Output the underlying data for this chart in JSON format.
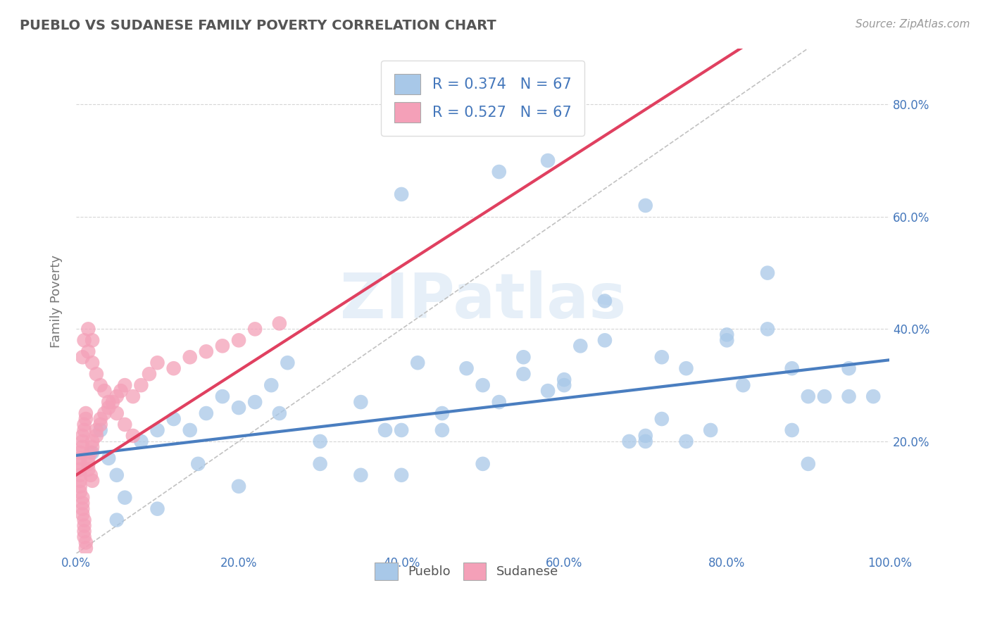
{
  "title": "PUEBLO VS SUDANESE FAMILY POVERTY CORRELATION CHART",
  "source": "Source: ZipAtlas.com",
  "xlabel": "",
  "ylabel": "Family Poverty",
  "xlim": [
    0,
    1.0
  ],
  "ylim": [
    0,
    0.9
  ],
  "xticks": [
    0.0,
    0.2,
    0.4,
    0.6,
    0.8,
    1.0
  ],
  "yticks": [
    0.2,
    0.4,
    0.6,
    0.8
  ],
  "xticklabels": [
    "0.0%",
    "20.0%",
    "40.0%",
    "60.0%",
    "80.0%",
    "100.0%"
  ],
  "yticklabels_right": [
    "20.0%",
    "40.0%",
    "60.0%",
    "80.0%"
  ],
  "pueblo_color": "#A8C8E8",
  "sudanese_color": "#F4A0B8",
  "pueblo_line_color": "#4A7EC0",
  "sudanese_line_color": "#E04060",
  "diag_line_color": "#BBBBBB",
  "watermark_text": "ZIPatlas",
  "R_pueblo": 0.374,
  "N_pueblo": 67,
  "R_sudanese": 0.527,
  "N_sudanese": 67,
  "pueblo_x": [
    0.02,
    0.03,
    0.04,
    0.05,
    0.06,
    0.08,
    0.1,
    0.12,
    0.14,
    0.16,
    0.18,
    0.2,
    0.22,
    0.24,
    0.26,
    0.3,
    0.35,
    0.38,
    0.4,
    0.42,
    0.45,
    0.48,
    0.5,
    0.52,
    0.55,
    0.58,
    0.6,
    0.62,
    0.65,
    0.68,
    0.7,
    0.72,
    0.75,
    0.78,
    0.8,
    0.82,
    0.85,
    0.88,
    0.9,
    0.92,
    0.95,
    0.98,
    0.52,
    0.58,
    0.65,
    0.72,
    0.8,
    0.88,
    0.3,
    0.4,
    0.5,
    0.6,
    0.7,
    0.9,
    0.1,
    0.2,
    0.35,
    0.45,
    0.55,
    0.75,
    0.85,
    0.95,
    0.25,
    0.15,
    0.05,
    0.7,
    0.4
  ],
  "pueblo_y": [
    0.18,
    0.22,
    0.17,
    0.14,
    0.1,
    0.2,
    0.22,
    0.24,
    0.22,
    0.25,
    0.28,
    0.26,
    0.27,
    0.3,
    0.34,
    0.2,
    0.27,
    0.22,
    0.22,
    0.34,
    0.25,
    0.33,
    0.3,
    0.27,
    0.35,
    0.29,
    0.31,
    0.37,
    0.38,
    0.2,
    0.21,
    0.24,
    0.33,
    0.22,
    0.39,
    0.3,
    0.4,
    0.22,
    0.28,
    0.28,
    0.28,
    0.28,
    0.68,
    0.7,
    0.45,
    0.35,
    0.38,
    0.33,
    0.16,
    0.14,
    0.16,
    0.3,
    0.2,
    0.16,
    0.08,
    0.12,
    0.14,
    0.22,
    0.32,
    0.2,
    0.5,
    0.33,
    0.25,
    0.16,
    0.06,
    0.62,
    0.64
  ],
  "sudanese_x": [
    0.005,
    0.005,
    0.005,
    0.005,
    0.005,
    0.005,
    0.005,
    0.005,
    0.008,
    0.008,
    0.008,
    0.008,
    0.008,
    0.008,
    0.008,
    0.01,
    0.01,
    0.01,
    0.01,
    0.01,
    0.01,
    0.012,
    0.012,
    0.012,
    0.012,
    0.015,
    0.015,
    0.015,
    0.018,
    0.018,
    0.02,
    0.02,
    0.02,
    0.025,
    0.025,
    0.03,
    0.03,
    0.035,
    0.04,
    0.045,
    0.05,
    0.055,
    0.06,
    0.07,
    0.08,
    0.09,
    0.1,
    0.12,
    0.14,
    0.16,
    0.18,
    0.2,
    0.22,
    0.25,
    0.015,
    0.02,
    0.025,
    0.03,
    0.035,
    0.04,
    0.05,
    0.06,
    0.07,
    0.01,
    0.015,
    0.02,
    0.008
  ],
  "sudanese_y": [
    0.14,
    0.15,
    0.16,
    0.13,
    0.17,
    0.18,
    0.12,
    0.11,
    0.19,
    0.1,
    0.2,
    0.09,
    0.08,
    0.07,
    0.21,
    0.06,
    0.22,
    0.05,
    0.04,
    0.23,
    0.03,
    0.24,
    0.02,
    0.01,
    0.25,
    0.16,
    0.17,
    0.15,
    0.18,
    0.14,
    0.19,
    0.13,
    0.2,
    0.21,
    0.22,
    0.23,
    0.24,
    0.25,
    0.26,
    0.27,
    0.28,
    0.29,
    0.3,
    0.28,
    0.3,
    0.32,
    0.34,
    0.33,
    0.35,
    0.36,
    0.37,
    0.38,
    0.4,
    0.41,
    0.36,
    0.34,
    0.32,
    0.3,
    0.29,
    0.27,
    0.25,
    0.23,
    0.21,
    0.38,
    0.4,
    0.38,
    0.35
  ],
  "background_color": "#FFFFFF",
  "grid_color": "#CCCCCC",
  "title_color": "#555555"
}
